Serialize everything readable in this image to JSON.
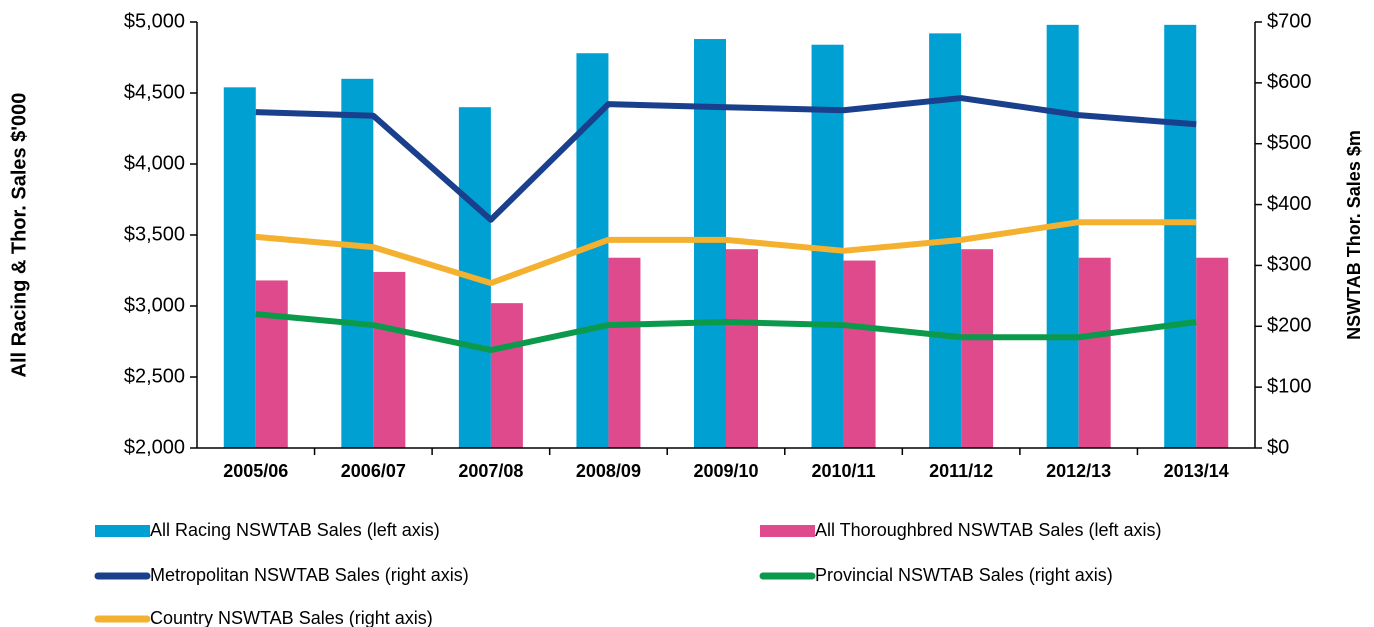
{
  "chart_data": {
    "type": "bar-line",
    "ylabel": "All Racing & Thor. Sales $'000",
    "y2label": "NSWTAB Thor. Sales $m",
    "categories": [
      "2005/06",
      "2006/07",
      "2007/08",
      "2008/09",
      "2009/10",
      "2010/11",
      "2011/12",
      "2012/13",
      "2013/14"
    ],
    "series": [
      {
        "name": "All Racing NSWTAB Sales (left axis)",
        "type": "bar",
        "color": "#00a0d2",
        "values": [
          4540,
          4600,
          4400,
          4780,
          4880,
          4840,
          4920,
          4980,
          4980
        ]
      },
      {
        "name": "All Thoroughbred NSWTAB Sales (left axis)",
        "type": "bar",
        "color": "#df4a8c",
        "values": [
          3180,
          3240,
          3020,
          3340,
          3400,
          3320,
          3400,
          3340,
          3340
        ]
      },
      {
        "name": "Metropolitan NSWTAB Sales (right axis)",
        "type": "line",
        "axis": "y2",
        "color": "#1a3f8c",
        "values": [
          552,
          546,
          375,
          565,
          560,
          555,
          575,
          547,
          532
        ]
      },
      {
        "name": "Provincial NSWTAB Sales (right axis)",
        "type": "line",
        "axis": "y2",
        "color": "#0b9a4b",
        "values": [
          220,
          202,
          161,
          202,
          207,
          202,
          182,
          182,
          207
        ]
      },
      {
        "name": "Country NSWTAB Sales (right axis)",
        "type": "line",
        "axis": "y2",
        "color": "#f4b12f",
        "values": [
          347,
          330,
          271,
          342,
          342,
          324,
          342,
          371,
          371
        ]
      }
    ],
    "ylim": [
      2000,
      5000
    ],
    "yticks": [
      {
        "value": 2000,
        "label": "$2,000"
      },
      {
        "value": 2500,
        "label": "$2,500"
      },
      {
        "value": 3000,
        "label": "$3,000"
      },
      {
        "value": 3500,
        "label": "$3,500"
      },
      {
        "value": 4000,
        "label": "$4,000"
      },
      {
        "value": 4500,
        "label": "$4,500"
      },
      {
        "value": 5000,
        "label": "$5,000"
      }
    ],
    "y2lim": [
      0,
      700
    ],
    "y2ticks": [
      {
        "value": 0,
        "label": "$0"
      },
      {
        "value": 100,
        "label": "$100"
      },
      {
        "value": 200,
        "label": "$200"
      },
      {
        "value": 300,
        "label": "$300"
      },
      {
        "value": 400,
        "label": "$400"
      },
      {
        "value": 500,
        "label": "$500"
      },
      {
        "value": 600,
        "label": "$600"
      },
      {
        "value": 700,
        "label": "$700"
      }
    ],
    "grid": false
  }
}
